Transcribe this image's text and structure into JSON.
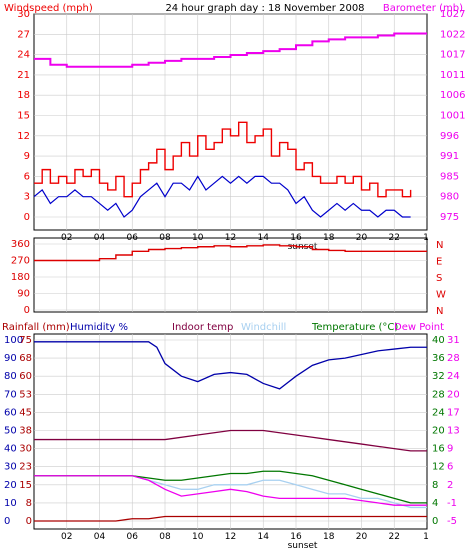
{
  "header": {
    "windspeed_label": "Windspeed (mph)",
    "title": "24 hour graph day : 18 November 2008",
    "barometer_label": "Barometer (mb)"
  },
  "colors": {
    "wind_gust": "#ee0000",
    "wind_avg": "#0000cc",
    "barometer": "#ee00ee",
    "direction": "#dd0000",
    "rainfall": "#aa0000",
    "humidity": "#0000aa",
    "indoor_temp": "#800040",
    "windchill": "#a8d0f0",
    "temperature": "#007700",
    "dew_point": "#ee00ee",
    "grid": "#cccccc"
  },
  "x_axis": {
    "hour_ticks": [
      "02",
      "04",
      "06",
      "08",
      "10",
      "12",
      "14",
      "16",
      "18",
      "20",
      "22"
    ],
    "end_tick": "1",
    "sunset_label": "sunset"
  },
  "chart_data": [
    {
      "type": "line",
      "title": "24 hour graph day : 18 November 2008",
      "xlabel": "",
      "ylabel": "Windspeed (mph)",
      "y2label": "Barometer (mb)",
      "x_range": [
        0,
        24
      ],
      "ylim": [
        0,
        30
      ],
      "y2lim": [
        975,
        1027
      ],
      "y_ticks": [
        0,
        3,
        6,
        9,
        12,
        15,
        18,
        21,
        24,
        27,
        30
      ],
      "y2_ticks": [
        975,
        980,
        985,
        991,
        996,
        1001,
        1006,
        1011,
        1017,
        1022,
        1027
      ],
      "grid": true,
      "series": [
        {
          "name": "Windspeed (mph)",
          "axis": "left",
          "color": "#ee0000",
          "x": [
            0,
            0.5,
            1,
            1.5,
            2,
            2.5,
            3,
            3.5,
            4,
            4.5,
            5,
            5.5,
            6,
            6.5,
            7,
            7.5,
            8,
            8.5,
            9,
            9.5,
            10,
            10.5,
            11,
            11.5,
            12,
            12.5,
            13,
            13.5,
            14,
            14.5,
            15,
            15.5,
            16,
            16.5,
            17,
            17.5,
            18,
            18.5,
            19,
            19.5,
            20,
            20.5,
            21,
            21.5,
            22,
            22.5,
            23
          ],
          "values": [
            5,
            7,
            5,
            6,
            5,
            7,
            6,
            7,
            5,
            4,
            6,
            3,
            5,
            7,
            8,
            10,
            7,
            9,
            11,
            9,
            12,
            10,
            11,
            13,
            12,
            14,
            11,
            12,
            13,
            9,
            11,
            10,
            7,
            8,
            6,
            5,
            5,
            6,
            5,
            6,
            4,
            5,
            3,
            4,
            4,
            3,
            4
          ]
        },
        {
          "name": "Average wind",
          "axis": "left",
          "color": "#0000cc",
          "x": [
            0,
            0.5,
            1,
            1.5,
            2,
            2.5,
            3,
            3.5,
            4,
            4.5,
            5,
            5.5,
            6,
            6.5,
            7,
            7.5,
            8,
            8.5,
            9,
            9.5,
            10,
            10.5,
            11,
            11.5,
            12,
            12.5,
            13,
            13.5,
            14,
            14.5,
            15,
            15.5,
            16,
            16.5,
            17,
            17.5,
            18,
            18.5,
            19,
            19.5,
            20,
            20.5,
            21,
            21.5,
            22,
            22.5,
            23
          ],
          "values": [
            3,
            4,
            2,
            3,
            3,
            4,
            3,
            3,
            2,
            1,
            2,
            0,
            1,
            3,
            4,
            5,
            3,
            5,
            5,
            4,
            6,
            4,
            5,
            6,
            5,
            6,
            5,
            6,
            6,
            5,
            5,
            4,
            2,
            3,
            1,
            0,
            1,
            2,
            1,
            2,
            1,
            1,
            0,
            1,
            1,
            0,
            0
          ]
        },
        {
          "name": "Barometer (mb)",
          "axis": "right",
          "color": "#ee00ee",
          "x": [
            0,
            1,
            2,
            3,
            4,
            5,
            6,
            7,
            8,
            9,
            10,
            11,
            12,
            13,
            14,
            15,
            16,
            17,
            18,
            19,
            20,
            21,
            22,
            23,
            24
          ],
          "values": [
            1015.5,
            1014,
            1013.5,
            1013.5,
            1013.5,
            1013.5,
            1014,
            1014.5,
            1015,
            1015.5,
            1015.5,
            1016,
            1016.5,
            1017,
            1017.5,
            1018,
            1019,
            1020,
            1020.5,
            1021,
            1021,
            1021.5,
            1022,
            1022,
            1022
          ]
        }
      ]
    },
    {
      "type": "line",
      "ylabel": "Wind direction",
      "x_range": [
        0,
        24
      ],
      "ylim": [
        0,
        360
      ],
      "y_ticks": [
        0,
        90,
        180,
        270,
        360
      ],
      "y2_ticks": [
        "N",
        "E",
        "S",
        "W",
        "N"
      ],
      "grid": true,
      "series": [
        {
          "name": "Wind direction",
          "color": "#dd0000",
          "x": [
            0,
            3,
            4,
            5,
            6,
            7,
            8,
            9,
            10,
            11,
            12,
            13,
            14,
            15,
            16,
            17,
            18,
            19,
            20,
            21,
            22,
            23,
            24
          ],
          "values": [
            270,
            270,
            280,
            300,
            320,
            330,
            335,
            340,
            345,
            350,
            345,
            350,
            355,
            350,
            345,
            330,
            325,
            320,
            320,
            320,
            320,
            320,
            320
          ]
        }
      ]
    },
    {
      "type": "line",
      "ylabel": "Rainfall (mm) / Humidity %",
      "y2label": "Temperature (°C)",
      "x_range": [
        0,
        24
      ],
      "ylim": [
        0,
        100
      ],
      "y2lim": [
        0,
        40
      ],
      "y_ticks": [
        0,
        10,
        20,
        30,
        40,
        50,
        60,
        70,
        80,
        90,
        100
      ],
      "y_tick_labels": [
        "0",
        "10",
        "20",
        "30",
        "40",
        "50",
        "60",
        "70",
        "80",
        "90",
        "100"
      ],
      "y_left_labels": [
        "0",
        "8",
        "15",
        "23",
        "30",
        "38",
        "45",
        "53",
        "60",
        "68",
        "75"
      ],
      "y2_ticks": [
        "0",
        "4",
        "8",
        "12",
        "16",
        "20",
        "24",
        "28",
        "32",
        "36",
        "40"
      ],
      "y2_tick_labels": [
        "-5",
        "-1",
        "2",
        "6",
        "9",
        "13",
        "17",
        "20",
        "24",
        "28",
        "31"
      ],
      "grid": true,
      "legend": {
        "rainfall": "Rainfall (mm)",
        "humidity": "Humidity %",
        "indoor": "Indoor temp",
        "windchill": "Windchill",
        "temperature": "Temperature (°C)",
        "dewpoint": "Dew Point"
      },
      "series": [
        {
          "name": "Humidity %",
          "color": "#0000aa",
          "x": [
            0,
            1,
            2,
            3,
            4,
            5,
            6,
            7,
            7.5,
            8,
            9,
            10,
            11,
            12,
            13,
            14,
            15,
            16,
            17,
            18,
            19,
            20,
            21,
            22,
            23,
            24
          ],
          "values": [
            99,
            99,
            99,
            99,
            99,
            99,
            99,
            99,
            96,
            87,
            80,
            77,
            81,
            82,
            81,
            76,
            73,
            80,
            86,
            89,
            90,
            92,
            94,
            95,
            96,
            96
          ]
        },
        {
          "name": "Indoor temp",
          "color": "#800040",
          "x": [
            0,
            2,
            4,
            6,
            8,
            10,
            12,
            13,
            14,
            15,
            16,
            17,
            18,
            19,
            20,
            21,
            22,
            23,
            24
          ],
          "values": [
            18,
            18,
            18,
            18,
            18,
            19,
            20,
            20,
            20,
            19.5,
            19,
            18.5,
            18,
            17.5,
            17,
            16.5,
            16,
            15.5,
            15.5
          ]
        },
        {
          "name": "Windchill",
          "color": "#a8d0f0",
          "x": [
            0,
            2,
            4,
            6,
            7,
            8,
            9,
            10,
            11,
            12,
            13,
            14,
            15,
            16,
            17,
            18,
            19,
            20,
            21,
            22,
            23,
            24
          ],
          "values": [
            10,
            10,
            10,
            10,
            9,
            8,
            7,
            7,
            8,
            8,
            8,
            9,
            9,
            8,
            7,
            6,
            6,
            5,
            5,
            4,
            3,
            3
          ]
        },
        {
          "name": "Temperature (°C)",
          "color": "#007700",
          "x": [
            0,
            2,
            4,
            6,
            7,
            8,
            9,
            10,
            11,
            12,
            13,
            14,
            15,
            16,
            17,
            18,
            19,
            20,
            21,
            22,
            23,
            24
          ],
          "values": [
            10,
            10,
            10,
            10,
            9.5,
            9,
            9,
            9.5,
            10,
            10.5,
            10.5,
            11,
            11,
            10.5,
            10,
            9,
            8,
            7,
            6,
            5,
            4,
            4
          ]
        },
        {
          "name": "Dew Point",
          "color": "#ee00ee",
          "x": [
            0,
            2,
            4,
            6,
            7,
            8,
            9,
            10,
            11,
            12,
            13,
            14,
            15,
            16,
            17,
            18,
            19,
            20,
            21,
            22,
            23,
            24
          ],
          "values": [
            10,
            10,
            10,
            10,
            9,
            7,
            5.5,
            6,
            6.5,
            7,
            6.5,
            5.5,
            5,
            5,
            5,
            5,
            5,
            4.5,
            4,
            3.5,
            3.5,
            3.5
          ]
        },
        {
          "name": "Rainfall (mm)",
          "color": "#aa0000",
          "x": [
            0,
            5,
            6,
            7,
            8,
            24
          ],
          "values": [
            0,
            0,
            0.5,
            0.5,
            1,
            1
          ]
        }
      ]
    }
  ]
}
